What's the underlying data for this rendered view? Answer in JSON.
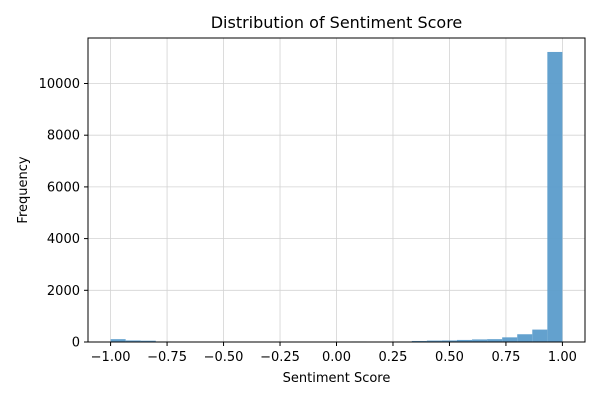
{
  "chart_data": {
    "type": "bar",
    "title": "Distribution of Sentiment Score",
    "xlabel": "Sentiment Score",
    "ylabel": "Frequency",
    "xlim": [
      -1.1,
      1.1
    ],
    "ylim": [
      0,
      11760
    ],
    "x_ticks": [
      -1.0,
      -0.75,
      -0.5,
      -0.25,
      0.0,
      0.25,
      0.5,
      0.75,
      1.0
    ],
    "x_tick_labels": [
      "−1.00",
      "−0.75",
      "−0.50",
      "−0.25",
      "0.00",
      "0.25",
      "0.50",
      "0.75",
      "1.00"
    ],
    "y_ticks": [
      0,
      2000,
      4000,
      6000,
      8000,
      10000
    ],
    "y_tick_labels": [
      "0",
      "2000",
      "4000",
      "6000",
      "8000",
      "10000"
    ],
    "grid": true,
    "bins": {
      "start": -1.0,
      "end": 1.0,
      "count": 30
    },
    "values": [
      110,
      60,
      50,
      20,
      15,
      15,
      10,
      15,
      10,
      10,
      10,
      10,
      10,
      10,
      10,
      15,
      20,
      10,
      15,
      20,
      40,
      55,
      60,
      80,
      100,
      110,
      180,
      300,
      480,
      11220
    ],
    "bar_color": "#5b9ccb"
  }
}
